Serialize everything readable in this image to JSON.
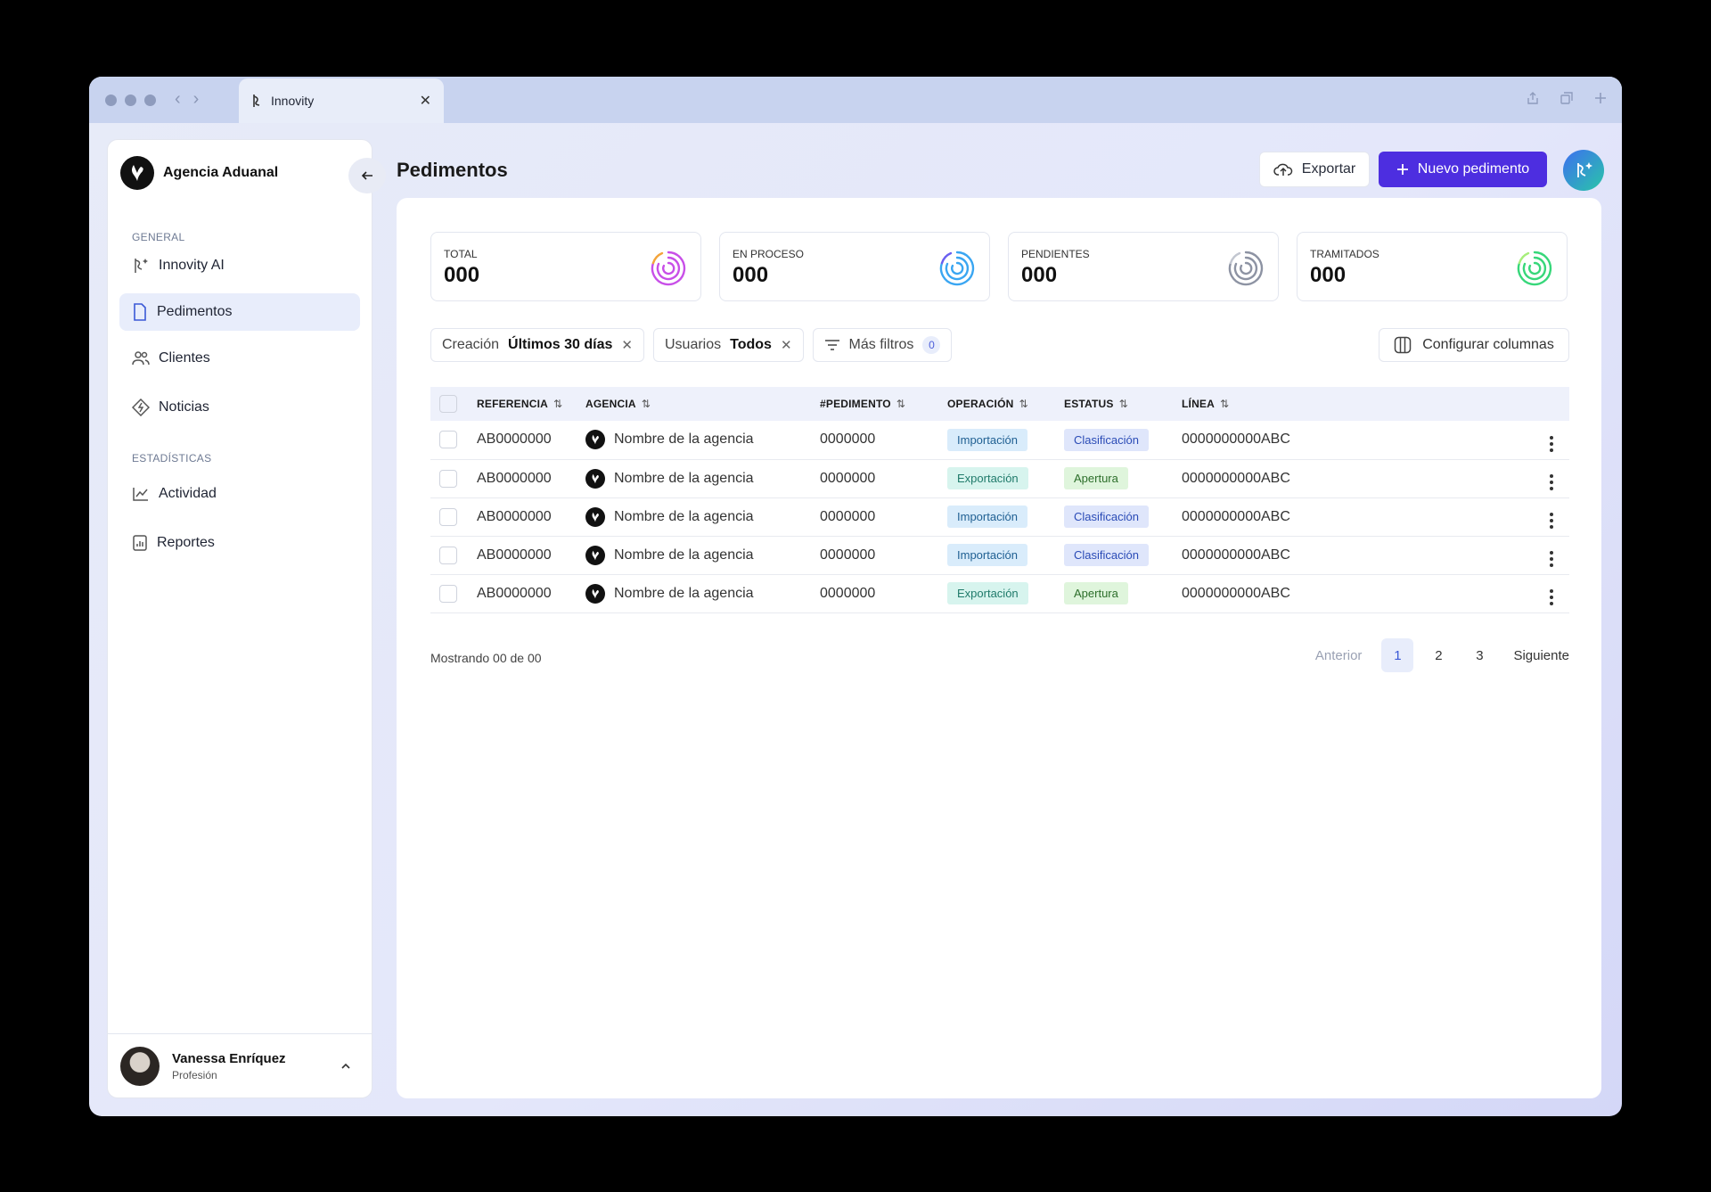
{
  "browser": {
    "tab_title": "Innovity"
  },
  "sidebar": {
    "brand": "Agencia Aduanal",
    "sections": [
      {
        "label": "GENERAL"
      },
      {
        "label": "ESTADÍSTICAS"
      }
    ],
    "items": [
      {
        "label": "Innovity AI",
        "icon": "sparkle-icon"
      },
      {
        "label": "Pedimentos",
        "icon": "document-icon",
        "active": true
      },
      {
        "label": "Clientes",
        "icon": "users-icon"
      },
      {
        "label": "Noticias",
        "icon": "news-icon"
      },
      {
        "label": "Actividad",
        "icon": "chart-line-icon"
      },
      {
        "label": "Reportes",
        "icon": "report-icon"
      }
    ],
    "user": {
      "name": "Vanessa Enríquez",
      "role": "Profesión"
    }
  },
  "header": {
    "title": "Pedimentos",
    "export_label": "Exportar",
    "new_label": "Nuevo pedimento"
  },
  "stats": [
    {
      "label": "TOTAL",
      "value": "000",
      "color": "#c84fe8"
    },
    {
      "label": "EN PROCESO",
      "value": "000",
      "color": "#3aa6f2"
    },
    {
      "label": "PENDIENTES",
      "value": "000",
      "color": "#8d93a3"
    },
    {
      "label": "TRAMITADOS",
      "value": "000",
      "color": "#37d77a"
    }
  ],
  "filters": {
    "creation_label": "Creación",
    "creation_value": "Últimos 30 días",
    "users_label": "Usuarios",
    "users_value": "Todos",
    "more_label": "Más filtros",
    "more_count": "0",
    "config_label": "Configurar columnas"
  },
  "table": {
    "columns": [
      "REFERENCIA",
      "AGENCIA",
      "#PEDIMENTO",
      "OPERACIÓN",
      "ESTATUS",
      "LÍNEA"
    ],
    "rows": [
      {
        "ref": "AB0000000",
        "agency": "Nombre de la agencia",
        "ped": "0000000",
        "op": "Importación",
        "status": "Clasificación",
        "line": "0000000000ABC"
      },
      {
        "ref": "AB0000000",
        "agency": "Nombre de la agencia",
        "ped": "0000000",
        "op": "Exportación",
        "status": "Apertura",
        "line": "0000000000ABC"
      },
      {
        "ref": "AB0000000",
        "agency": "Nombre de la agencia",
        "ped": "0000000",
        "op": "Importación",
        "status": "Clasificación",
        "line": "0000000000ABC"
      },
      {
        "ref": "AB0000000",
        "agency": "Nombre de la agencia",
        "ped": "0000000",
        "op": "Importación",
        "status": "Clasificación",
        "line": "0000000000ABC"
      },
      {
        "ref": "AB0000000",
        "agency": "Nombre de la agencia",
        "ped": "0000000",
        "op": "Exportación",
        "status": "Apertura",
        "line": "0000000000ABC"
      }
    ]
  },
  "pagination": {
    "showing": "Mostrando 00 de 00",
    "prev": "Anterior",
    "pages": [
      "1",
      "2",
      "3"
    ],
    "next": "Siguiente"
  }
}
